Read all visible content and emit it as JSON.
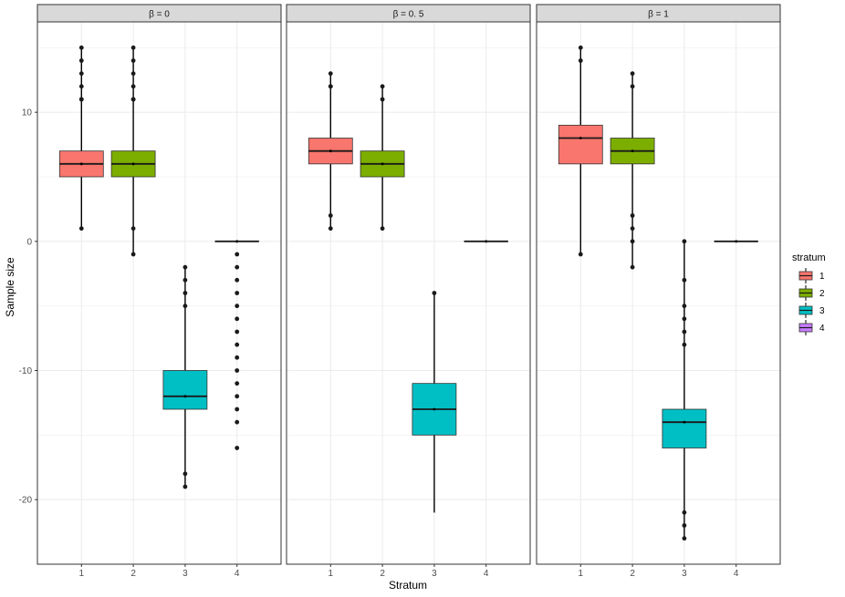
{
  "chart_data": {
    "type": "boxplot",
    "xlabel": "Stratum",
    "ylabel": "Sample size",
    "categories": [
      "1",
      "2",
      "3",
      "4"
    ],
    "ylim": [
      -25,
      17
    ],
    "yticks": [
      10,
      0,
      -10,
      -20
    ],
    "ytick_labels": [
      "10",
      "0",
      "-10",
      "-20"
    ],
    "grid": true,
    "legend": {
      "title": "stratum",
      "position": "right",
      "entries": [
        {
          "label": "1",
          "color": "#F8766D"
        },
        {
          "label": "2",
          "color": "#7CAE00"
        },
        {
          "label": "3",
          "color": "#00BFC4"
        },
        {
          "label": "4",
          "color": "#C77CFF"
        }
      ]
    },
    "facets": [
      {
        "label": "β = 0",
        "boxes": [
          {
            "stratum": "1",
            "q1": 5,
            "median": 6,
            "q3": 7,
            "whisker_low": 1,
            "whisker_high": 15,
            "outliers": [
              1,
              11,
              11,
              12,
              13,
              14,
              15
            ]
          },
          {
            "stratum": "2",
            "q1": 5,
            "median": 6,
            "q3": 7,
            "whisker_low": -1,
            "whisker_high": 15,
            "outliers": [
              -1,
              1,
              11,
              11,
              12,
              13,
              14,
              15
            ]
          },
          {
            "stratum": "3",
            "q1": -13,
            "median": -12,
            "q3": -10,
            "whisker_low": -19,
            "whisker_high": -2,
            "outliers": [
              -2,
              -3,
              -4,
              -5,
              -18,
              -19
            ]
          },
          {
            "stratum": "4",
            "q1": 0,
            "median": 0,
            "q3": 0,
            "whisker_low": 0,
            "whisker_high": 0,
            "outliers": [
              -1,
              -2,
              -3,
              -4,
              -5,
              -6,
              -7,
              -8,
              -9,
              -10,
              -11,
              -12,
              -13,
              -14,
              -16
            ]
          }
        ]
      },
      {
        "label": "β = 0. 5",
        "boxes": [
          {
            "stratum": "1",
            "q1": 6,
            "median": 7,
            "q3": 8,
            "whisker_low": 1,
            "whisker_high": 13,
            "outliers": [
              1,
              2,
              12,
              12,
              13
            ]
          },
          {
            "stratum": "2",
            "q1": 5,
            "median": 6,
            "q3": 7,
            "whisker_low": 1,
            "whisker_high": 12,
            "outliers": [
              1,
              11,
              12
            ]
          },
          {
            "stratum": "3",
            "q1": -15,
            "median": -13,
            "q3": -11,
            "whisker_low": -21,
            "whisker_high": -4,
            "outliers": [
              -4
            ]
          },
          {
            "stratum": "4",
            "q1": 0,
            "median": 0,
            "q3": 0,
            "whisker_low": 0,
            "whisker_high": 0,
            "outliers": []
          }
        ]
      },
      {
        "label": "β = 1",
        "boxes": [
          {
            "stratum": "1",
            "q1": 6,
            "median": 8,
            "q3": 9,
            "whisker_low": -1,
            "whisker_high": 15,
            "outliers": [
              -1,
              14,
              15
            ]
          },
          {
            "stratum": "2",
            "q1": 6,
            "median": 7,
            "q3": 8,
            "whisker_low": -2,
            "whisker_high": 13,
            "outliers": [
              -2,
              0,
              1,
              2,
              12,
              13
            ]
          },
          {
            "stratum": "3",
            "q1": -16,
            "median": -14,
            "q3": -13,
            "whisker_low": -23,
            "whisker_high": 0,
            "outliers": [
              0,
              -3,
              -5,
              -6,
              -7,
              -8,
              -21,
              -22,
              -23
            ]
          },
          {
            "stratum": "4",
            "q1": 0,
            "median": 0,
            "q3": 0,
            "whisker_low": 0,
            "whisker_high": 0,
            "outliers": []
          }
        ]
      }
    ]
  }
}
